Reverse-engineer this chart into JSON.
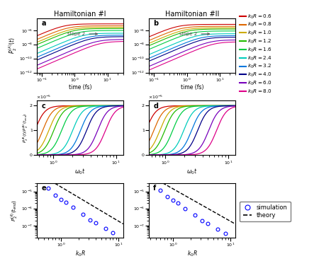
{
  "title_left": "Hamiltonian #I",
  "title_right": "Hamiltonian #II",
  "k0R_values": [
    0.6,
    0.8,
    1.0,
    1.2,
    1.6,
    2.4,
    3.2,
    4.0,
    6.0,
    8.0
  ],
  "colors": [
    "#cc0000",
    "#dd6600",
    "#ccaa00",
    "#22bb00",
    "#00cc44",
    "#00ccbb",
    "#0077dd",
    "#000088",
    "#7700bb",
    "#dd0088"
  ],
  "ylabel_ab": "$P_2^{(A)}(t)$",
  "ylabel_cd": "$P_2^{(A)}(t)/P_2^{(A)}(t_{end})$",
  "ylabel_ef": "$P_2^{(A)}(t_{end})$",
  "xlabel_ab": "time (fs)",
  "xlabel_cd": "$\\omega_0 t$",
  "xlabel_ef": "$k_0R$",
  "ylim_ab_low": 1e-12,
  "ylim_ab_high": 5e-05,
  "ylim_cd_low": 0,
  "ylim_cd_high": 2.2e-05,
  "ylim_ef_low": 2e-08,
  "ylim_ef_high": 3e-05,
  "xlim_ab_low": 0.07,
  "xlim_ab_high": 30,
  "xlim_cd_low": 0.55,
  "xlim_cd_high": 13,
  "xlim_ef_low": 0.38,
  "xlim_ef_high": 12,
  "slope2_label": "slope 2",
  "legend_sim": "simulation",
  "legend_th": "theory",
  "background": "#f0f0f0"
}
